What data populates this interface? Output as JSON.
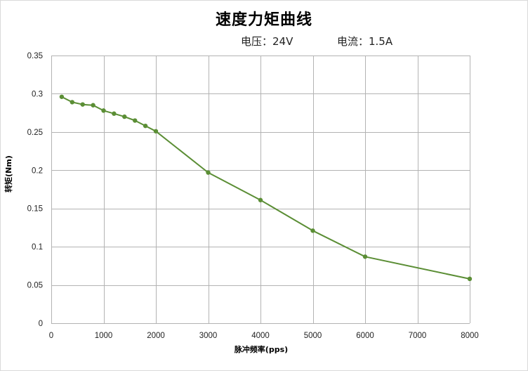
{
  "chart_data": {
    "type": "line",
    "title": "速度力矩曲线",
    "subtitle_voltage": "电压：24V",
    "subtitle_current": "电流：1.5A",
    "xlabel": "脉冲频率(pps)",
    "ylabel": "转矩(Nm)",
    "xlim": [
      0,
      8000
    ],
    "ylim": [
      0,
      0.35
    ],
    "x_ticks": [
      0,
      1000,
      2000,
      3000,
      4000,
      5000,
      6000,
      7000,
      8000
    ],
    "y_ticks": [
      "0",
      "0.05",
      "0.1",
      "0.15",
      "0.2",
      "0.25",
      "0.3",
      "0.35"
    ],
    "grid": true,
    "series": [
      {
        "color": "#5b8e35",
        "x": [
          200,
          400,
          600,
          800,
          1000,
          1200,
          1400,
          1600,
          1800,
          2000,
          3000,
          4000,
          5000,
          6000,
          8000
        ],
        "y": [
          0.296,
          0.289,
          0.286,
          0.285,
          0.278,
          0.274,
          0.27,
          0.265,
          0.258,
          0.251,
          0.197,
          0.161,
          0.121,
          0.087,
          0.058
        ]
      }
    ]
  }
}
